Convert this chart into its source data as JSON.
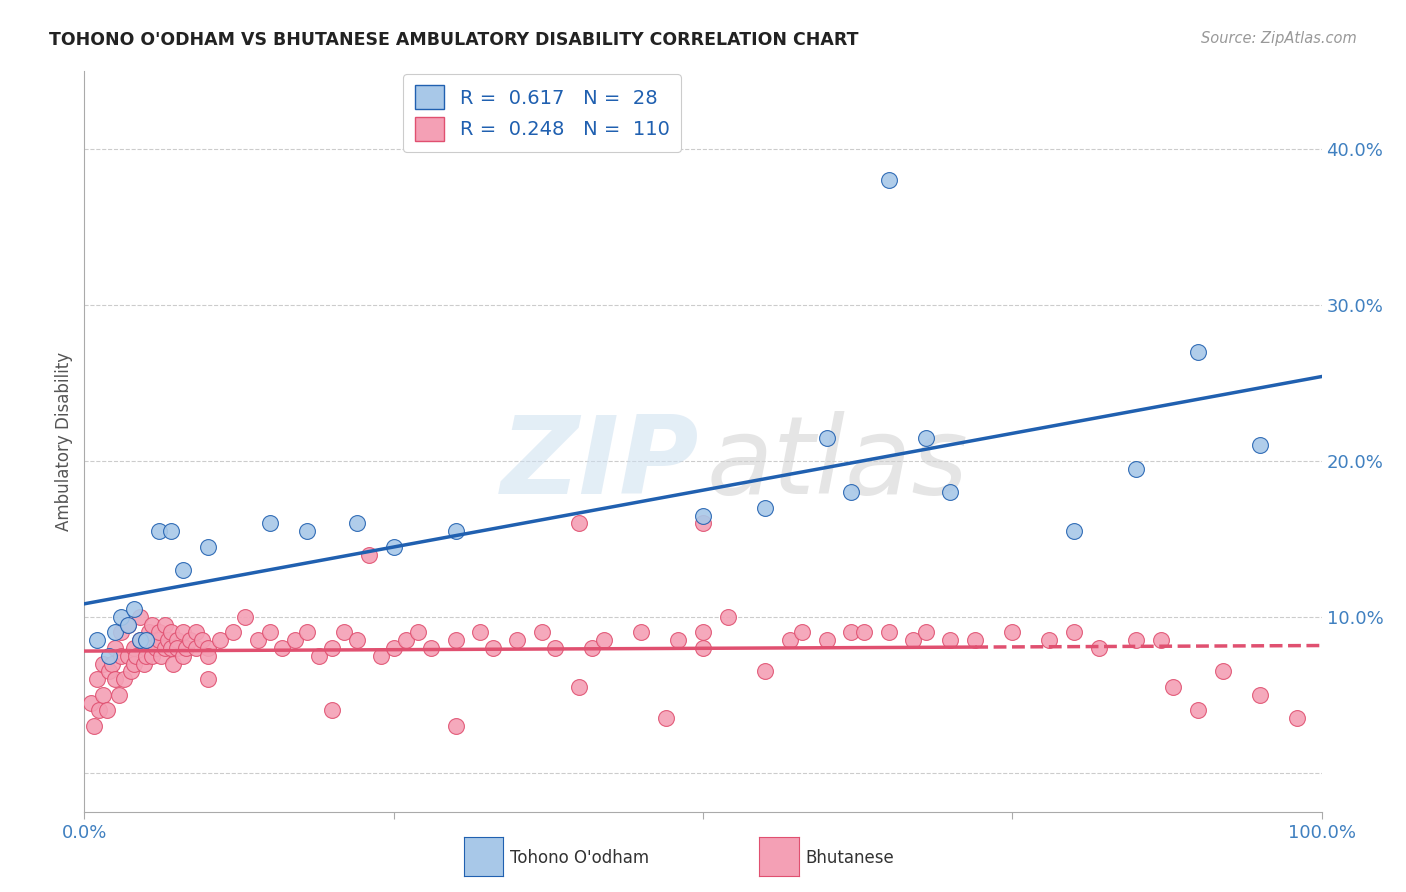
{
  "title": "TOHONO O'ODHAM VS BHUTANESE AMBULATORY DISABILITY CORRELATION CHART",
  "source": "Source: ZipAtlas.com",
  "ylabel": "Ambulatory Disability",
  "xlim": [
    0,
    1
  ],
  "ylim": [
    -0.025,
    0.45
  ],
  "xticks": [
    0,
    0.25,
    0.5,
    0.75,
    1.0
  ],
  "xticklabels": [
    "0.0%",
    "",
    "",
    "",
    "100.0%"
  ],
  "yticks": [
    0.0,
    0.1,
    0.2,
    0.3,
    0.4
  ],
  "yticklabels": [
    "",
    "10.0%",
    "20.0%",
    "30.0%",
    "40.0%"
  ],
  "tohono_color": "#a8c8e8",
  "bhutanese_color": "#f4a0b5",
  "tohono_line_color": "#2060b0",
  "bhutanese_line_color": "#e05070",
  "R_tohono": 0.617,
  "N_tohono": 28,
  "R_bhutanese": 0.248,
  "N_bhutanese": 110,
  "tohono_scatter_x": [
    0.01,
    0.02,
    0.025,
    0.03,
    0.035,
    0.04,
    0.045,
    0.05,
    0.06,
    0.07,
    0.08,
    0.1,
    0.15,
    0.18,
    0.22,
    0.25,
    0.3,
    0.5,
    0.55,
    0.6,
    0.62,
    0.65,
    0.68,
    0.7,
    0.8,
    0.85,
    0.9,
    0.95
  ],
  "tohono_scatter_y": [
    0.085,
    0.075,
    0.09,
    0.1,
    0.095,
    0.105,
    0.085,
    0.085,
    0.155,
    0.155,
    0.13,
    0.145,
    0.16,
    0.155,
    0.16,
    0.145,
    0.155,
    0.165,
    0.17,
    0.215,
    0.18,
    0.38,
    0.215,
    0.18,
    0.155,
    0.195,
    0.27,
    0.21
  ],
  "bhutanese_scatter_x": [
    0.005,
    0.008,
    0.01,
    0.012,
    0.015,
    0.015,
    0.018,
    0.02,
    0.022,
    0.025,
    0.025,
    0.028,
    0.03,
    0.03,
    0.032,
    0.035,
    0.035,
    0.038,
    0.04,
    0.04,
    0.042,
    0.045,
    0.045,
    0.048,
    0.05,
    0.05,
    0.052,
    0.055,
    0.055,
    0.058,
    0.06,
    0.06,
    0.062,
    0.065,
    0.065,
    0.068,
    0.07,
    0.07,
    0.072,
    0.075,
    0.075,
    0.08,
    0.08,
    0.082,
    0.085,
    0.09,
    0.09,
    0.095,
    0.1,
    0.1,
    0.11,
    0.12,
    0.13,
    0.14,
    0.15,
    0.16,
    0.17,
    0.18,
    0.19,
    0.2,
    0.21,
    0.22,
    0.23,
    0.24,
    0.25,
    0.26,
    0.27,
    0.28,
    0.3,
    0.32,
    0.33,
    0.35,
    0.37,
    0.38,
    0.4,
    0.41,
    0.42,
    0.45,
    0.47,
    0.48,
    0.5,
    0.5,
    0.52,
    0.55,
    0.57,
    0.58,
    0.6,
    0.62,
    0.63,
    0.65,
    0.67,
    0.68,
    0.7,
    0.72,
    0.75,
    0.78,
    0.8,
    0.82,
    0.85,
    0.87,
    0.88,
    0.9,
    0.92,
    0.95,
    0.98,
    0.5,
    0.4,
    0.3,
    0.2,
    0.1
  ],
  "bhutanese_scatter_y": [
    0.045,
    0.03,
    0.06,
    0.04,
    0.05,
    0.07,
    0.04,
    0.065,
    0.07,
    0.06,
    0.08,
    0.05,
    0.075,
    0.09,
    0.06,
    0.075,
    0.095,
    0.065,
    0.08,
    0.07,
    0.075,
    0.085,
    0.1,
    0.07,
    0.08,
    0.075,
    0.09,
    0.075,
    0.095,
    0.08,
    0.085,
    0.09,
    0.075,
    0.08,
    0.095,
    0.085,
    0.08,
    0.09,
    0.07,
    0.085,
    0.08,
    0.09,
    0.075,
    0.08,
    0.085,
    0.08,
    0.09,
    0.085,
    0.08,
    0.075,
    0.085,
    0.09,
    0.1,
    0.085,
    0.09,
    0.08,
    0.085,
    0.09,
    0.075,
    0.08,
    0.09,
    0.085,
    0.14,
    0.075,
    0.08,
    0.085,
    0.09,
    0.08,
    0.085,
    0.09,
    0.08,
    0.085,
    0.09,
    0.08,
    0.16,
    0.08,
    0.085,
    0.09,
    0.035,
    0.085,
    0.09,
    0.08,
    0.1,
    0.065,
    0.085,
    0.09,
    0.085,
    0.09,
    0.09,
    0.09,
    0.085,
    0.09,
    0.085,
    0.085,
    0.09,
    0.085,
    0.09,
    0.08,
    0.085,
    0.085,
    0.055,
    0.04,
    0.065,
    0.05,
    0.035,
    0.16,
    0.055,
    0.03,
    0.04,
    0.06
  ],
  "background_color": "#ffffff",
  "grid_color": "#cccccc"
}
